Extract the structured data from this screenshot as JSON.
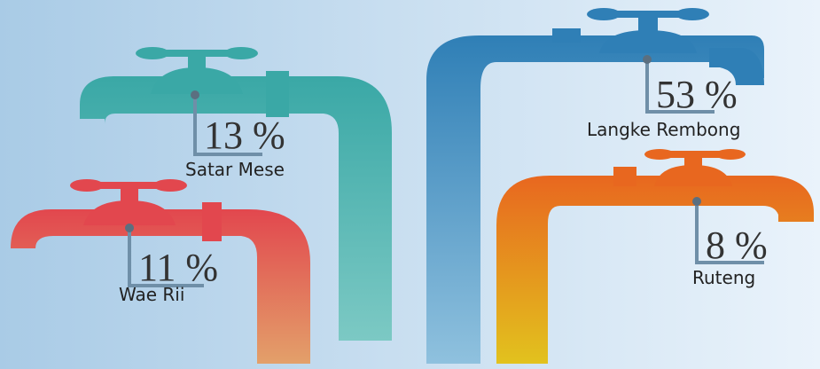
{
  "chart_data": {
    "type": "bar",
    "title": "",
    "categories": [
      "Satar Mese",
      "Wae Rii",
      "Langke Rembong",
      "Ruteng"
    ],
    "values": [
      13,
      11,
      53,
      8
    ],
    "value_labels": [
      "13 %",
      "11 %",
      "53 %",
      "8 %"
    ],
    "unit": "%",
    "colors": {
      "background_left": "#a9cbe6",
      "background_right": "#eaf3fb",
      "Satar Mese": [
        "#3aa8a6",
        "#7cc9c4"
      ],
      "Wae Rii": [
        "#e2474e",
        "#e3a06a"
      ],
      "Langke Rembong": [
        "#2f7fb6",
        "#8fc1de"
      ],
      "Ruteng": [
        "#e8671f",
        "#e2c21e"
      ]
    },
    "icon": "water-faucet-icon"
  }
}
